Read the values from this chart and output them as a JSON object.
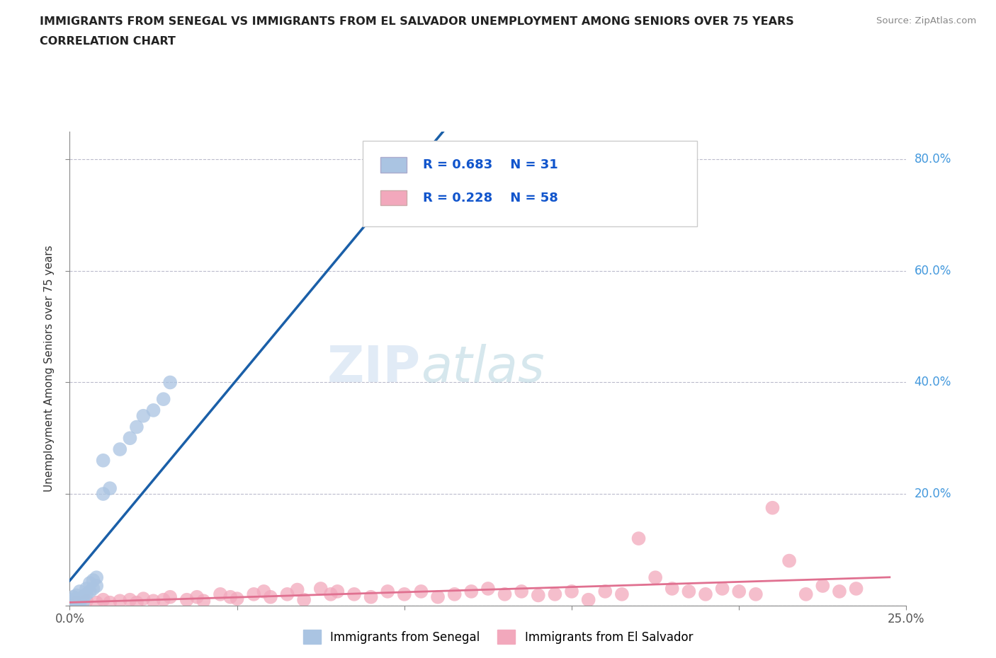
{
  "title_line1": "IMMIGRANTS FROM SENEGAL VS IMMIGRANTS FROM EL SALVADOR UNEMPLOYMENT AMONG SENIORS OVER 75 YEARS",
  "title_line2": "CORRELATION CHART",
  "source": "Source: ZipAtlas.com",
  "ylabel": "Unemployment Among Seniors over 75 years",
  "xlim": [
    0.0,
    0.25
  ],
  "ylim": [
    0.0,
    0.85
  ],
  "senegal_R": 0.683,
  "senegal_N": 31,
  "elsalvador_R": 0.228,
  "elsalvador_N": 58,
  "senegal_color": "#aac4e2",
  "elsalvador_color": "#f2a8bc",
  "senegal_line_color": "#1a5fa8",
  "elsalvador_line_color": "#e07090",
  "legend_label_senegal": "Immigrants from Senegal",
  "legend_label_elsalvador": "Immigrants from El Salvador",
  "senegal_x": [
    0.001,
    0.002,
    0.001,
    0.003,
    0.002,
    0.001,
    0.002,
    0.003,
    0.004,
    0.002,
    0.005,
    0.003,
    0.004,
    0.005,
    0.006,
    0.007,
    0.008,
    0.006,
    0.007,
    0.008,
    0.01,
    0.012,
    0.01,
    0.015,
    0.018,
    0.02,
    0.022,
    0.025,
    0.028,
    0.03,
    0.12
  ],
  "senegal_y": [
    0.005,
    0.008,
    0.01,
    0.005,
    0.012,
    0.015,
    0.008,
    0.01,
    0.006,
    0.018,
    0.02,
    0.025,
    0.015,
    0.03,
    0.025,
    0.03,
    0.035,
    0.04,
    0.045,
    0.05,
    0.2,
    0.21,
    0.26,
    0.28,
    0.3,
    0.32,
    0.34,
    0.35,
    0.37,
    0.4,
    0.75
  ],
  "elsalvador_x": [
    0.002,
    0.005,
    0.008,
    0.01,
    0.012,
    0.015,
    0.018,
    0.02,
    0.022,
    0.025,
    0.028,
    0.03,
    0.035,
    0.038,
    0.04,
    0.045,
    0.048,
    0.05,
    0.055,
    0.058,
    0.06,
    0.065,
    0.068,
    0.07,
    0.075,
    0.078,
    0.08,
    0.085,
    0.09,
    0.095,
    0.1,
    0.105,
    0.11,
    0.115,
    0.12,
    0.125,
    0.13,
    0.135,
    0.14,
    0.145,
    0.15,
    0.155,
    0.16,
    0.165,
    0.17,
    0.175,
    0.18,
    0.185,
    0.19,
    0.195,
    0.2,
    0.205,
    0.21,
    0.215,
    0.22,
    0.225,
    0.23,
    0.235
  ],
  "elsalvador_y": [
    0.005,
    0.008,
    0.005,
    0.01,
    0.005,
    0.008,
    0.01,
    0.005,
    0.012,
    0.008,
    0.01,
    0.015,
    0.01,
    0.015,
    0.008,
    0.02,
    0.015,
    0.012,
    0.02,
    0.025,
    0.015,
    0.02,
    0.028,
    0.01,
    0.03,
    0.02,
    0.025,
    0.02,
    0.015,
    0.025,
    0.02,
    0.025,
    0.015,
    0.02,
    0.025,
    0.03,
    0.02,
    0.025,
    0.018,
    0.02,
    0.025,
    0.01,
    0.025,
    0.02,
    0.12,
    0.05,
    0.03,
    0.025,
    0.02,
    0.03,
    0.025,
    0.02,
    0.175,
    0.08,
    0.02,
    0.035,
    0.025,
    0.03
  ],
  "right_ytick_labels": [
    "80.0%",
    "60.0%",
    "40.0%",
    "20.0%"
  ],
  "right_ytick_values": [
    0.8,
    0.6,
    0.4,
    0.2
  ]
}
